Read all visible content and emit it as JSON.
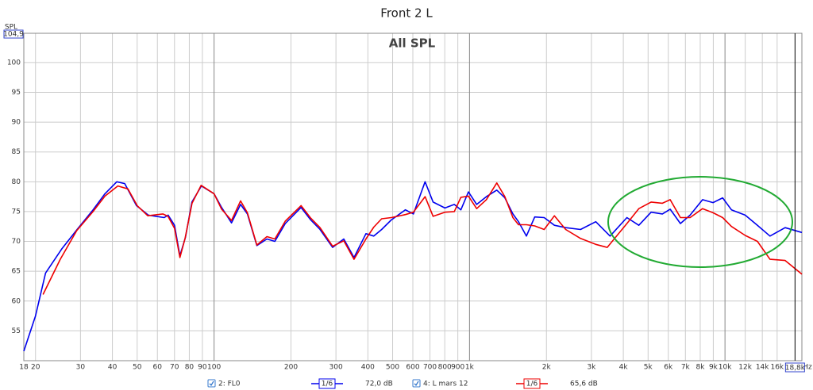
{
  "chart_data": {
    "type": "line",
    "title": "Front 2 L",
    "annotation": "All SPL",
    "ylabel": "SPL",
    "xunit": "Hz",
    "xscale": "log",
    "xlim": [
      18,
      20000
    ],
    "ylim": [
      50,
      104.9
    ],
    "yticks": [
      55,
      60,
      65,
      70,
      75,
      80,
      85,
      90,
      95,
      100,
      {
        "value": 104.9,
        "label": "104,9"
      }
    ],
    "xticks": [
      18,
      20,
      30,
      40,
      50,
      60,
      70,
      80,
      90,
      100,
      200,
      300,
      400,
      500,
      600,
      700,
      800,
      900,
      {
        "value": 1000,
        "label": "1k"
      },
      {
        "value": 2000,
        "label": "2k"
      },
      {
        "value": 3000,
        "label": "3k"
      },
      {
        "value": 4000,
        "label": "4k"
      },
      {
        "value": 5000,
        "label": "5k"
      },
      {
        "value": 6000,
        "label": "6k"
      },
      {
        "value": 7000,
        "label": "7k"
      },
      {
        "value": 8000,
        "label": "8k"
      },
      {
        "value": 9000,
        "label": "9k"
      },
      {
        "value": 10000,
        "label": "10k"
      },
      {
        "value": 12000,
        "label": "12k"
      },
      {
        "value": 14000,
        "label": "14k"
      },
      {
        "value": 16000,
        "label": "16k"
      }
    ],
    "cursor": {
      "value": 18800,
      "label": "18,8k"
    },
    "grid": true,
    "series": [
      {
        "name": "2: FL0",
        "color": "#0000ee",
        "smoothing": "1/6",
        "readout": "72,0 dB",
        "x": [
          18,
          20,
          21.9,
          25.3,
          29.1,
          33.6,
          37.4,
          41.6,
          44.7,
          49.7,
          55.3,
          63.8,
          66.1,
          70,
          73.5,
          77.3,
          81.9,
          89.2,
          100,
          107,
          117,
          127,
          135,
          147,
          161,
          173,
          190,
          219,
          239,
          260,
          291,
          322,
          353,
          393,
          422,
          453,
          494,
          561,
          603,
          670,
          720,
          801,
          872,
          925,
          990,
          1067,
          1164,
          1278,
          1375,
          1478,
          1555,
          1670,
          1800,
          1960,
          2150,
          2380,
          2720,
          3120,
          3550,
          4130,
          4600,
          5140,
          5690,
          6100,
          6690,
          7300,
          8170,
          8980,
          9790,
          10600,
          12000,
          13400,
          15000,
          17200,
          20000
        ],
        "values": [
          51.6,
          57.5,
          64.7,
          68.7,
          72,
          75.3,
          78,
          80,
          79.7,
          76,
          74.4,
          74,
          74.4,
          72.7,
          67.6,
          70.7,
          76.6,
          79.3,
          78,
          75.7,
          73.1,
          76.2,
          74.6,
          69.3,
          70.4,
          70,
          73,
          75.7,
          73.6,
          72,
          69,
          70.4,
          67.3,
          71.3,
          70.9,
          72,
          73.6,
          75.3,
          74.6,
          80,
          76.6,
          75.6,
          76.2,
          75.3,
          78.3,
          76.2,
          77.5,
          78.6,
          77.3,
          74.6,
          73.3,
          70.9,
          74.1,
          74,
          72.7,
          72.3,
          72,
          73.3,
          70.9,
          74,
          72.7,
          74.9,
          74.6,
          75.4,
          73,
          74.4,
          77,
          76.5,
          77.3,
          75.3,
          74.4,
          72.7,
          70.9,
          72.3,
          71.5
        ]
      },
      {
        "name": "4: L mars 12",
        "color": "#ee0000",
        "smoothing": "1/6",
        "readout": "65,6 dB",
        "x": [
          21.4,
          25,
          29,
          33.6,
          37.4,
          42,
          46,
          50,
          55,
          63,
          66,
          70,
          73.5,
          77,
          82,
          89,
          100,
          107,
          117,
          127,
          135,
          147,
          161,
          173,
          190,
          219,
          239,
          260,
          291,
          322,
          353,
          393,
          422,
          453,
          494,
          561,
          603,
          670,
          720,
          801,
          872,
          925,
          990,
          1067,
          1164,
          1278,
          1375,
          1478,
          1555,
          1670,
          1800,
          1960,
          2150,
          2380,
          2720,
          3120,
          3460,
          4130,
          4600,
          5140,
          5690,
          6100,
          6690,
          7300,
          8170,
          8980,
          9790,
          10600,
          12000,
          13400,
          15000,
          17200,
          20000
        ],
        "values": [
          61.1,
          67,
          71.8,
          75,
          77.6,
          79.3,
          78.8,
          76,
          74.3,
          74.6,
          74.2,
          72.2,
          67.3,
          70.5,
          76.4,
          79.4,
          78,
          75.4,
          73.5,
          76.8,
          74.8,
          69.4,
          70.8,
          70.4,
          73.4,
          76,
          73.9,
          72.3,
          69.2,
          70.1,
          67,
          70.4,
          72.4,
          73.8,
          74,
          74.5,
          74.9,
          77.5,
          74.2,
          74.9,
          75,
          77.4,
          77.6,
          75.5,
          77,
          79.8,
          77.5,
          74,
          72.8,
          72.8,
          72.6,
          72,
          74.3,
          72,
          70.5,
          69.5,
          69,
          73,
          75.5,
          76.6,
          76.4,
          77,
          74,
          74,
          75.5,
          74.8,
          74,
          72.5,
          71,
          70,
          67,
          66.8,
          64.5
        ]
      }
    ]
  }
}
